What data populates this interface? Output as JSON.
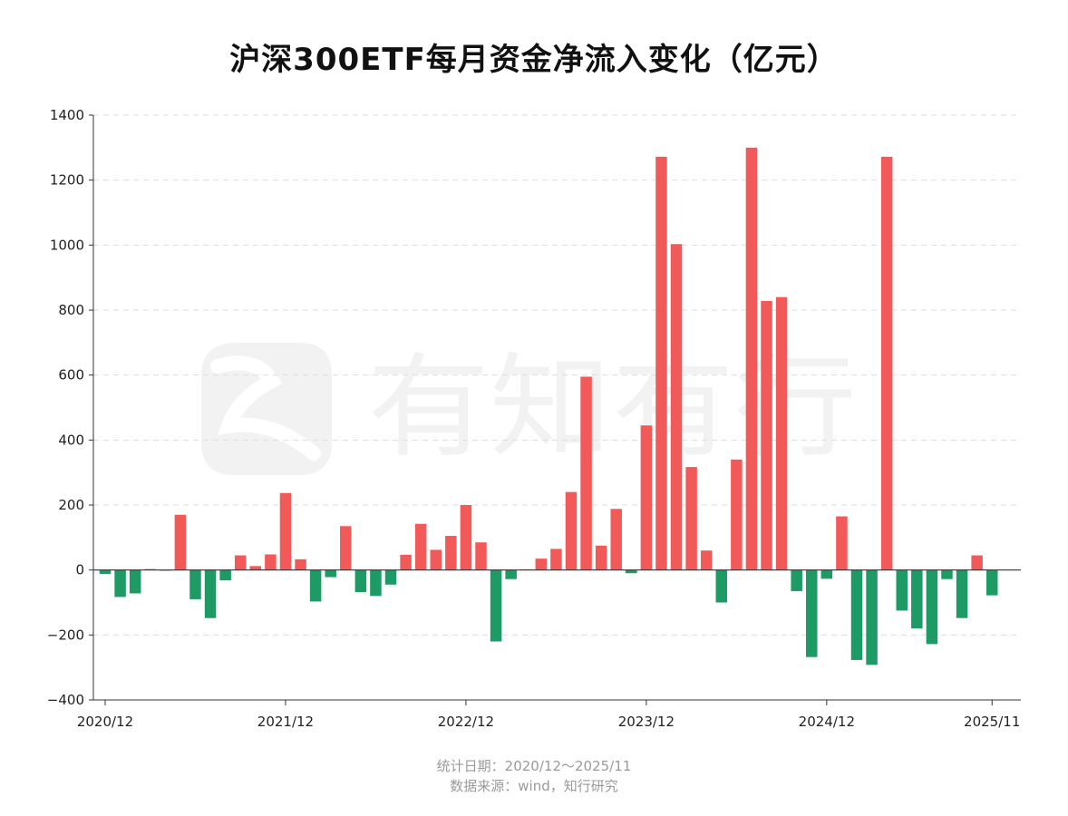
{
  "chart_data": {
    "type": "bar",
    "title": "沪深300ETF每月资金净流入变化（亿元）",
    "xlabel": "",
    "ylabel": "",
    "ylim": [
      -400,
      1400
    ],
    "yticks": [
      -400,
      -200,
      0,
      200,
      400,
      600,
      800,
      1000,
      1200,
      1400
    ],
    "grid": true,
    "legend": "none",
    "colors": {
      "positive": "#f25a5a",
      "negative": "#1e9a64",
      "axis": "#333333",
      "grid": "#dddddd"
    },
    "x_tick_labels": [
      "2020/12",
      "2021/12",
      "2022/12",
      "2023/12",
      "2024/12",
      "2025/11"
    ],
    "x_tick_indices": [
      0,
      12,
      24,
      36,
      48,
      59
    ],
    "categories": [
      "2020/12",
      "2021/01",
      "2021/02",
      "2021/03",
      "2021/04",
      "2021/05",
      "2021/06",
      "2021/07",
      "2021/08",
      "2021/09",
      "2021/10",
      "2021/11",
      "2021/12",
      "2022/01",
      "2022/02",
      "2022/03",
      "2022/04",
      "2022/05",
      "2022/06",
      "2022/07",
      "2022/08",
      "2022/09",
      "2022/10",
      "2022/11",
      "2022/12",
      "2023/01",
      "2023/02",
      "2023/03",
      "2023/04",
      "2023/05",
      "2023/06",
      "2023/07",
      "2023/08",
      "2023/09",
      "2023/10",
      "2023/11",
      "2023/12",
      "2024/01",
      "2024/02",
      "2024/03",
      "2024/04",
      "2024/05",
      "2024/06",
      "2024/07",
      "2024/08",
      "2024/09",
      "2024/10",
      "2024/11",
      "2024/12",
      "2025/01",
      "2025/02",
      "2025/03",
      "2025/04",
      "2025/05",
      "2025/06",
      "2025/07",
      "2025/08",
      "2025/09",
      "2025/10",
      "2025/11"
    ],
    "values": [
      -12,
      -83,
      -72,
      3,
      -2,
      170,
      -90,
      -148,
      -32,
      45,
      12,
      48,
      237,
      33,
      -97,
      -22,
      135,
      -68,
      -80,
      -45,
      47,
      142,
      62,
      105,
      200,
      85,
      -220,
      -28,
      2,
      35,
      65,
      240,
      595,
      75,
      188,
      -10,
      445,
      1272,
      1003,
      317,
      60,
      -100,
      340,
      1300,
      828,
      840,
      -65,
      -268,
      -27,
      165,
      -277,
      -292,
      1272,
      -125,
      -180,
      -228,
      -28,
      -148,
      45,
      -78
    ]
  },
  "footer": {
    "stat_date": "统计日期：2020/12～2025/11",
    "source": "数据来源：wind，知行研究"
  },
  "watermark": {
    "text": "有知有行",
    "logo_icon": "yzyx-logo-icon"
  }
}
